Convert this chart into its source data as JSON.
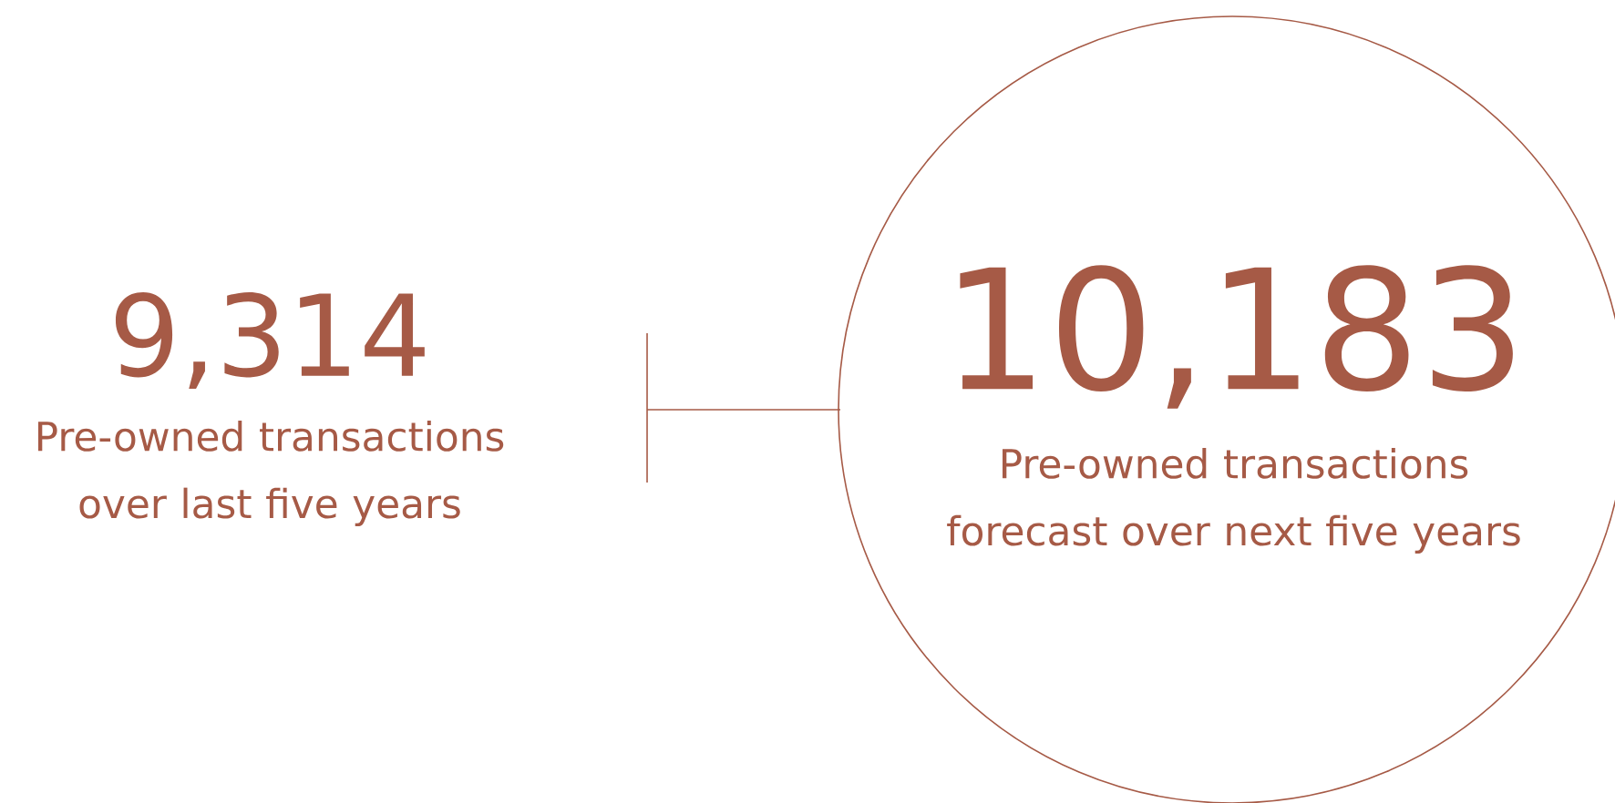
{
  "chart_data": {
    "type": "other",
    "categories": [
      "Pre-owned transactions over last five years",
      "Pre-owned transactions forecast over next five years"
    ],
    "values": [
      9314,
      10183
    ],
    "value_labels": [
      "9,314",
      "10,183"
    ],
    "color": "#a65a46"
  }
}
